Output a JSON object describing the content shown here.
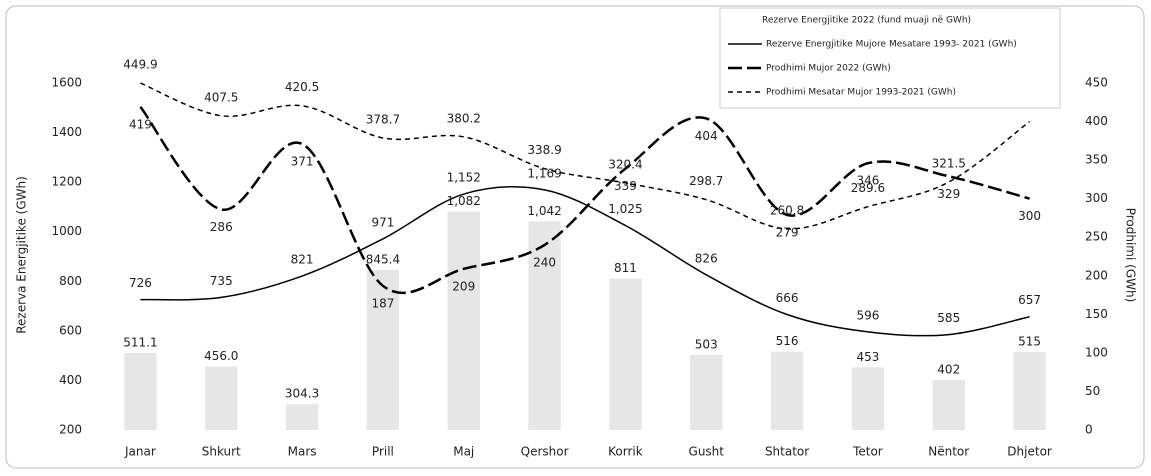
{
  "chart_data": {
    "type": "line",
    "y_label": "Rezerva Energjitike (GWh)",
    "y2_label": "Prodhimi (GWh)",
    "categories": [
      "Janar",
      "Shkurt",
      "Mars",
      "Prill",
      "Maj",
      "Qershor",
      "Korrik",
      "Gusht",
      "Shtator",
      "Tetor",
      "Nëntor",
      "Dhjetor"
    ],
    "ylim": [
      200,
      1600
    ],
    "yticks": [
      200,
      400,
      600,
      800,
      1000,
      1200,
      1400,
      1600
    ],
    "y2lim": [
      0,
      450
    ],
    "y2ticks": [
      0,
      50,
      100,
      150,
      200,
      250,
      300,
      350,
      400,
      450
    ],
    "series": [
      {
        "name": "Rezerve Energjitike 2022 (fund muaji në GWh)",
        "style": "bar",
        "color": "#e6e6e6",
        "values": [
          511.1,
          456,
          304.3,
          845.4,
          1082,
          1042,
          811,
          503,
          516,
          453,
          402,
          515
        ],
        "value_labels": [
          "511.1",
          "456.0",
          "304.3",
          "845.4",
          "1,082",
          "1,042",
          "811",
          "503",
          "516",
          "453",
          "402",
          "515"
        ]
      },
      {
        "name": "Rezerve Energjitike Mujore Mesatare 1993- 2021 (GWh)",
        "style": "solid",
        "color": "#000000",
        "values": [
          726,
          735,
          821,
          971,
          1152,
          1169,
          1025,
          826,
          666,
          596,
          585,
          657
        ],
        "value_labels": [
          "726",
          "735",
          "821",
          "971",
          "1,152",
          "1,169",
          "1,025",
          "826",
          "666",
          "596",
          "585",
          "657"
        ]
      },
      {
        "name": "Prodhimi Mujor 2022 (GWh)",
        "style": "dashed",
        "color": "#000000",
        "axis": "y2",
        "values": [
          419,
          286,
          371,
          187,
          209,
          240,
          339,
          404,
          279,
          346,
          329,
          300
        ]
      },
      {
        "name": "Prodhimi Mesatar Mujor 1993-2021 (GWh)",
        "style": "dotted",
        "color": "#000000",
        "axis": "y2",
        "values": [
          449.9,
          407.5,
          420.5,
          378.7,
          380.2,
          338.9,
          320.4,
          298.7,
          260.8,
          289.6,
          321.5,
          400
        ],
        "value_labels": [
          "449.9",
          "407.5",
          "420.5",
          "378.7",
          "380.2",
          "338.9",
          "320.4",
          "298.7",
          "260.8",
          "289.6",
          "321.5",
          null
        ]
      }
    ]
  }
}
